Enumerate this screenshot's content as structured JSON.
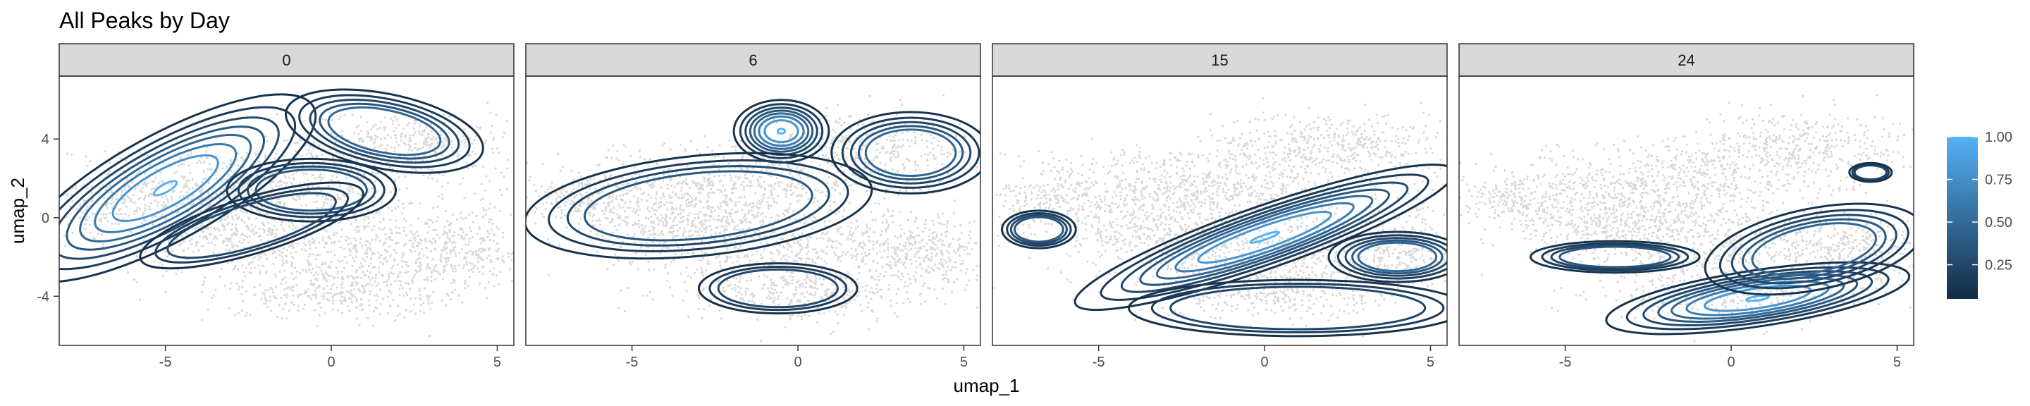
{
  "chart_data": {
    "type": "contour",
    "title": "All Peaks by Day",
    "xlabel": "umap_1",
    "ylabel": "umap_2",
    "xlim": [
      -8.2,
      5.5
    ],
    "ylim": [
      -6.5,
      7.2
    ],
    "x_ticks": [
      -5,
      0,
      5
    ],
    "y_ticks": [
      -4,
      0,
      4
    ],
    "grid": false,
    "facets": [
      {
        "label": "0",
        "contours": [
          {
            "c": [
              -5.0,
              1.5
            ],
            "s": [
              3.2,
              1.7
            ],
            "r": 0.55
          },
          {
            "c": [
              1.6,
              4.4
            ],
            "s": [
              1.9,
              1.2
            ],
            "r": -0.2
          },
          {
            "c": [
              -0.6,
              1.4
            ],
            "s": [
              1.6,
              1.0
            ],
            "r": 0.0
          },
          {
            "c": [
              -2.4,
              -0.4
            ],
            "s": [
              2.2,
              0.9
            ],
            "r": 0.3
          }
        ]
      },
      {
        "label": "6",
        "contours": [
          {
            "c": [
              -0.5,
              4.4
            ],
            "s": [
              0.9,
              1.0
            ],
            "r": 0.0
          },
          {
            "c": [
              3.4,
              3.3
            ],
            "s": [
              1.5,
              1.3
            ],
            "r": 0.0
          },
          {
            "c": [
              -3.0,
              0.6
            ],
            "s": [
              3.3,
              1.6
            ],
            "r": 0.1
          },
          {
            "c": [
              -0.6,
              -3.6
            ],
            "s": [
              1.5,
              0.8
            ],
            "r": 0.0
          }
        ]
      },
      {
        "label": "15",
        "contours": [
          {
            "c": [
              0.0,
              -1.0
            ],
            "s": [
              3.8,
              1.0
            ],
            "r": 0.35
          },
          {
            "c": [
              4.0,
              -2.0
            ],
            "s": [
              1.3,
              0.8
            ],
            "r": 0.0
          },
          {
            "c": [
              -6.8,
              -0.6
            ],
            "s": [
              0.7,
              0.6
            ],
            "r": 0.0
          },
          {
            "c": [
              1.0,
              -4.6
            ],
            "s": [
              3.2,
              0.9
            ],
            "r": 0.0
          }
        ]
      },
      {
        "label": "24",
        "contours": [
          {
            "c": [
              0.8,
              -4.1
            ],
            "s": [
              2.9,
              0.9
            ],
            "r": 0.15
          },
          {
            "c": [
              2.5,
              -1.6
            ],
            "s": [
              2.1,
              1.3
            ],
            "r": 0.2
          },
          {
            "c": [
              -3.5,
              -2.0
            ],
            "s": [
              1.6,
              0.5
            ],
            "r": 0.0
          },
          {
            "c": [
              4.2,
              2.3
            ],
            "s": [
              0.4,
              0.3
            ],
            "r": 0.0
          }
        ]
      }
    ],
    "legend": {
      "placement": "right",
      "ticks": [
        "0.25",
        "0.50",
        "0.75",
        "1.00"
      ],
      "tick_values": [
        0.25,
        0.5,
        0.75,
        1.0
      ],
      "range": [
        0.05,
        1.0
      ],
      "color_low": "#132B43",
      "color_high": "#56B1F7"
    },
    "colors": {
      "points": "#d9d9d9",
      "strip": "#d9d9d9",
      "panel_border": "#333333"
    }
  }
}
